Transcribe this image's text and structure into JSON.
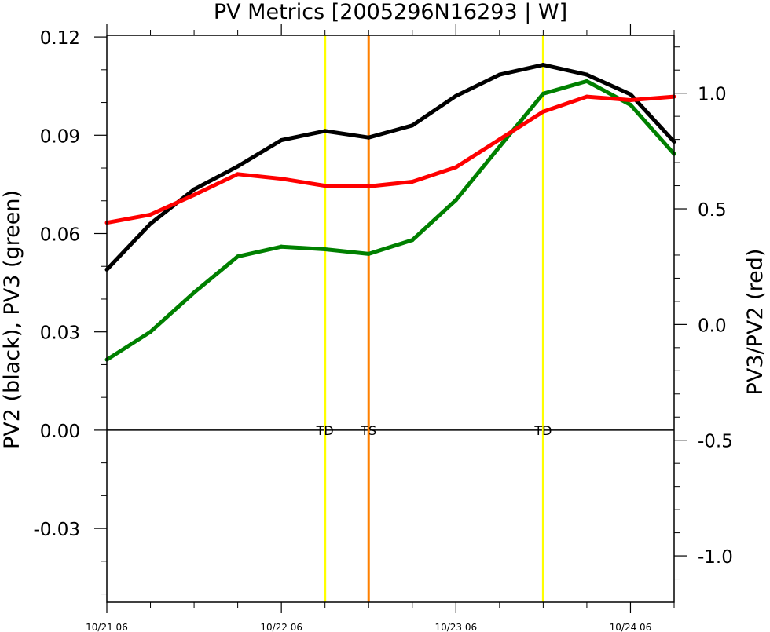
{
  "chart_data": {
    "type": "line",
    "title": "PV Metrics [2005296N16293 | W]",
    "ylabel_left": "PV2 (black), PV3 (green)",
    "ylabel_right": "PV3/PV2 (red)",
    "x_tick_labels": [
      "10/21 06",
      "10/22 06",
      "10/23 06",
      "10/24 06"
    ],
    "x_tick_days": [
      0,
      1,
      2,
      3
    ],
    "x_step_hours": 6,
    "x_range_days": [
      0,
      3.25
    ],
    "y_left_range": [
      -0.0525,
      0.1205
    ],
    "y_left_ticks": [
      0.12,
      0.09,
      0.06,
      0.03,
      0.0,
      -0.03
    ],
    "y_left_tick_labels": [
      "0.12",
      "0.09",
      "0.06",
      "0.03",
      "0.00",
      "-0.03"
    ],
    "y_right_range": [
      -1.2,
      1.25
    ],
    "y_right_ticks": [
      1.0,
      0.5,
      0.0,
      -0.5,
      -1.0
    ],
    "y_right_tick_labels": [
      "1.0",
      "0.5",
      "0.0",
      "-0.5",
      "-1.0"
    ],
    "series": [
      {
        "axis": "left",
        "color": "#000000",
        "values": [
          0.049,
          0.063,
          0.0735,
          0.0805,
          0.0885,
          0.0913,
          0.0893,
          0.093,
          0.102,
          0.1085,
          0.1115,
          0.1085,
          0.1025,
          0.088
        ]
      },
      {
        "axis": "left",
        "color": "#008000",
        "values": [
          0.0215,
          0.03,
          0.042,
          0.053,
          0.056,
          0.0552,
          0.0538,
          0.058,
          0.0702,
          0.0865,
          0.1027,
          0.1065,
          0.0993,
          0.0843
        ]
      },
      {
        "axis": "right",
        "color": "#ff0000",
        "values": [
          0.44,
          0.475,
          0.56,
          0.65,
          0.63,
          0.6,
          0.597,
          0.617,
          0.68,
          0.8,
          0.92,
          0.985,
          0.97,
          0.985
        ]
      }
    ],
    "stage_markers": [
      {
        "label": "TD",
        "x_day": 1.25,
        "color": "#ffff00"
      },
      {
        "label": "TS",
        "x_day": 1.5,
        "color": "#ff8000"
      },
      {
        "label": "TD",
        "x_day": 2.5,
        "color": "#ffff00"
      }
    ]
  }
}
